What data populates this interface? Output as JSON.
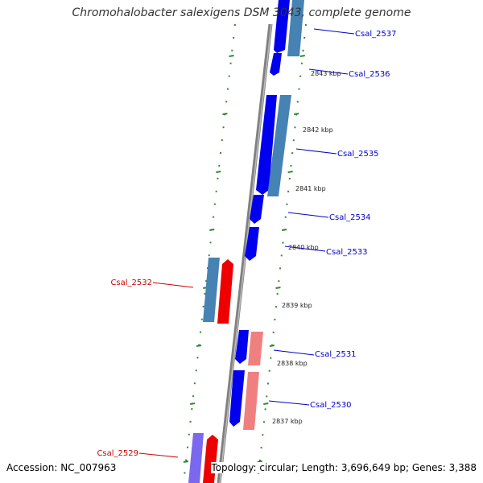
{
  "title": "Chromohalobacter salexigens DSM 3043, complete genome",
  "accession": "Accession: NC_007963",
  "topology": "Topology: circular; Length: 3,696,649 bp; Genes: 3,388",
  "colors": {
    "backbone": "#808080",
    "tick": "#2e8b2e",
    "forward_gene": "#0000ee",
    "forward_cds": "#4682b4",
    "reverse_gene": "#ee0000",
    "reverse_cds_light": "#f08080",
    "reverse_cds_purple": "#7b68ee",
    "label_forward": "#0000cc",
    "label_reverse": "#cc0000"
  },
  "gene_labels": [
    {
      "text": "Csal_2537",
      "strand": "forward"
    },
    {
      "text": "Csal_2536",
      "strand": "forward"
    },
    {
      "text": "Csal_2535",
      "strand": "forward"
    },
    {
      "text": "Csal_2534",
      "strand": "forward"
    },
    {
      "text": "Csal_2533",
      "strand": "forward"
    },
    {
      "text": "Csal_2532",
      "strand": "reverse"
    },
    {
      "text": "Csal_2531",
      "strand": "forward"
    },
    {
      "text": "Csal_2530",
      "strand": "forward"
    },
    {
      "text": "Csal_2529",
      "strand": "reverse"
    }
  ],
  "position_labels": [
    "2843 kbp",
    "2842 kbp",
    "2841 kbp",
    "2840 kbp",
    "2839 kbp",
    "2838 kbp",
    "2837 kbp"
  ]
}
